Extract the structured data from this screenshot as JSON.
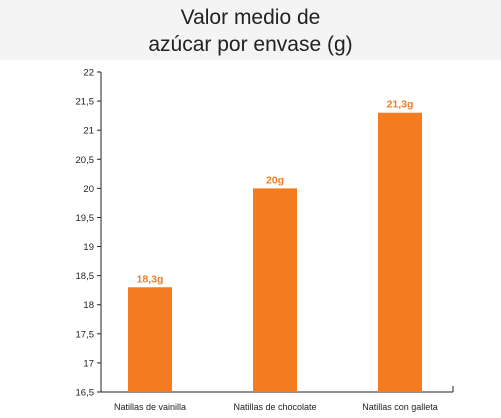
{
  "title": {
    "line1": "Valor medio de",
    "line2": "azúcar por envase (g)"
  },
  "colors": {
    "bar": "#f47b20",
    "axis": "#222222",
    "title_band": "#f4f4f4"
  },
  "chart_data": {
    "type": "bar",
    "title": "Valor medio de azúcar por envase (g)",
    "categories": [
      "Natillas de vainilla",
      "Natillas de chocolate",
      "Natillas con galleta"
    ],
    "values": [
      18.3,
      20,
      21.3
    ],
    "data_labels": [
      "18,3g",
      "20g",
      "21,3g"
    ],
    "ylim": [
      16.5,
      22
    ],
    "yticks": [
      16.5,
      17,
      17.5,
      18,
      18.5,
      19,
      19.5,
      20,
      20.5,
      21,
      21.5,
      22
    ],
    "ytick_labels": [
      "16,5",
      "17",
      "17,5",
      "18",
      "18,5",
      "19",
      "19,5",
      "20",
      "20,5",
      "21",
      "21,5",
      "22"
    ],
    "grid": false,
    "legend": "none",
    "xlabel": "",
    "ylabel": ""
  }
}
